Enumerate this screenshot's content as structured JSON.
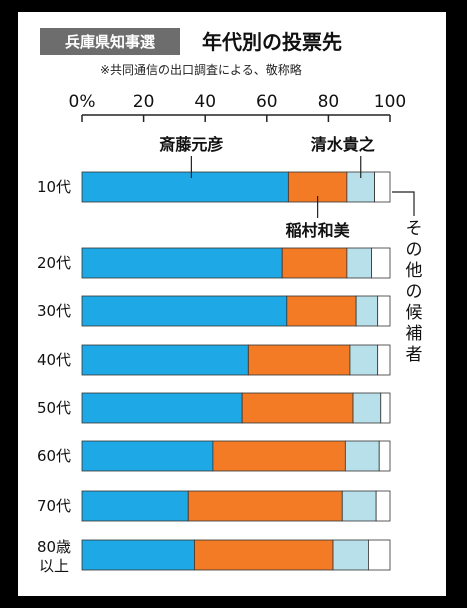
{
  "header": {
    "tag": "兵庫県知事選",
    "title": "年代別の投票先",
    "note": "※共同通信の出口調査による、敬称略"
  },
  "annotations": {
    "other_vertical": "その他の候補者"
  },
  "colors": {
    "saito": "#1ea9e6",
    "inamura": "#f47b25",
    "shimizu": "#b8e0ea",
    "other": "#ffffff",
    "tag_bg": "#6d6d6d"
  },
  "chart_data": {
    "type": "bar",
    "orientation": "horizontal",
    "stacked": true,
    "title": "年代別の投票先",
    "xlim": [
      0,
      100
    ],
    "x_tick_labels": [
      "0%",
      "20",
      "40",
      "60",
      "80",
      "100"
    ],
    "categories": [
      "10代",
      "20代",
      "30代",
      "40代",
      "50代",
      "60代",
      "70代",
      "80歳以上"
    ],
    "series": [
      {
        "name": "斎藤元彦",
        "values": [
          67,
          65,
          66.5,
          54,
          52,
          42.5,
          34.5,
          36.5
        ]
      },
      {
        "name": "稲村和美",
        "values": [
          19,
          21,
          22.5,
          33,
          36,
          43,
          50,
          45
        ]
      },
      {
        "name": "清水貴之",
        "values": [
          9,
          8,
          7,
          9,
          9,
          11,
          11,
          11.5
        ]
      },
      {
        "name": "その他の候補者",
        "values": [
          5,
          6,
          4,
          4,
          3,
          3.5,
          4.5,
          7
        ]
      }
    ]
  }
}
